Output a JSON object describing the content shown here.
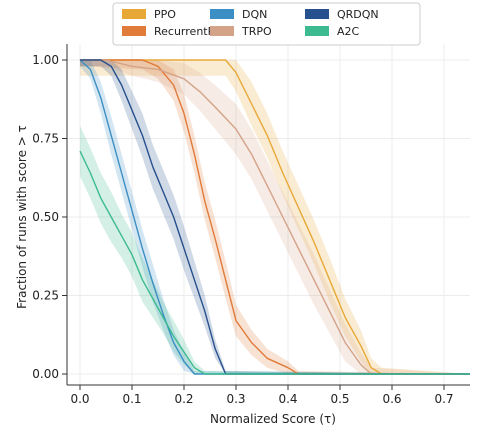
{
  "chart_data": {
    "type": "line",
    "xlabel": "Normalized Score (τ)",
    "ylabel": "Fraction of runs with score > τ",
    "xlim": [
      -0.025,
      0.75
    ],
    "ylim": [
      0.0,
      1.0
    ],
    "x_ticks": [
      "0.0",
      "0.1",
      "0.2",
      "0.3",
      "0.4",
      "0.5",
      "0.6",
      "0.7"
    ],
    "y_ticks": [
      "0.00",
      "0.25",
      "0.50",
      "0.75",
      "1.00"
    ],
    "grid": true,
    "legend_position": "top",
    "series": [
      {
        "name": "PPO",
        "color": "#e8a838",
        "x": [
          0.0,
          0.28,
          0.3,
          0.33,
          0.36,
          0.39,
          0.42,
          0.45,
          0.48,
          0.51,
          0.54,
          0.56,
          0.58
        ],
        "y": [
          1.0,
          1.0,
          0.96,
          0.86,
          0.76,
          0.64,
          0.53,
          0.42,
          0.3,
          0.18,
          0.09,
          0.02,
          0.0
        ],
        "band": [
          0.05,
          0.05,
          0.06,
          0.07,
          0.07,
          0.07,
          0.07,
          0.07,
          0.07,
          0.06,
          0.05,
          0.03,
          0.02
        ]
      },
      {
        "name": "RecurrentPPO",
        "color": "#e07b39",
        "x": [
          0.0,
          0.12,
          0.15,
          0.18,
          0.2,
          0.22,
          0.24,
          0.26,
          0.28,
          0.3,
          0.33,
          0.36,
          0.4,
          0.42
        ],
        "y": [
          1.0,
          1.0,
          0.98,
          0.92,
          0.83,
          0.7,
          0.55,
          0.43,
          0.3,
          0.17,
          0.1,
          0.05,
          0.02,
          0.0
        ],
        "band": [
          0.02,
          0.03,
          0.04,
          0.05,
          0.06,
          0.06,
          0.06,
          0.06,
          0.06,
          0.05,
          0.04,
          0.03,
          0.02,
          0.01
        ]
      },
      {
        "name": "DQN",
        "color": "#3b8fc4",
        "x": [
          0.0,
          0.02,
          0.04,
          0.06,
          0.08,
          0.1,
          0.12,
          0.14,
          0.16,
          0.18,
          0.2,
          0.22
        ],
        "y": [
          1.0,
          0.97,
          0.88,
          0.76,
          0.64,
          0.52,
          0.4,
          0.29,
          0.19,
          0.1,
          0.04,
          0.0
        ],
        "band": [
          0.02,
          0.03,
          0.05,
          0.06,
          0.06,
          0.06,
          0.06,
          0.06,
          0.05,
          0.04,
          0.03,
          0.01
        ]
      },
      {
        "name": "TRPO",
        "color": "#d4a287",
        "x": [
          0.0,
          0.05,
          0.1,
          0.15,
          0.2,
          0.23,
          0.26,
          0.3,
          0.33,
          0.36,
          0.39,
          0.42,
          0.45,
          0.48,
          0.51,
          0.54,
          0.56
        ],
        "y": [
          1.0,
          1.0,
          0.98,
          0.97,
          0.94,
          0.9,
          0.85,
          0.78,
          0.7,
          0.6,
          0.5,
          0.4,
          0.3,
          0.2,
          0.1,
          0.03,
          0.0
        ],
        "band": [
          0.02,
          0.02,
          0.03,
          0.04,
          0.05,
          0.06,
          0.07,
          0.08,
          0.08,
          0.08,
          0.08,
          0.08,
          0.08,
          0.07,
          0.06,
          0.04,
          0.02
        ]
      },
      {
        "name": "QRDQN",
        "color": "#27508e",
        "x": [
          0.0,
          0.04,
          0.06,
          0.08,
          0.1,
          0.12,
          0.14,
          0.16,
          0.18,
          0.2,
          0.22,
          0.24,
          0.26,
          0.28
        ],
        "y": [
          1.0,
          1.0,
          0.98,
          0.92,
          0.84,
          0.76,
          0.66,
          0.58,
          0.5,
          0.4,
          0.3,
          0.2,
          0.08,
          0.0
        ],
        "band": [
          0.02,
          0.02,
          0.03,
          0.05,
          0.06,
          0.07,
          0.07,
          0.07,
          0.07,
          0.07,
          0.06,
          0.05,
          0.03,
          0.01
        ]
      },
      {
        "name": "A2C",
        "color": "#3dba8f",
        "x": [
          0.0,
          0.02,
          0.04,
          0.06,
          0.08,
          0.1,
          0.12,
          0.14,
          0.16,
          0.18,
          0.2,
          0.22,
          0.24
        ],
        "y": [
          0.71,
          0.64,
          0.56,
          0.5,
          0.44,
          0.38,
          0.3,
          0.24,
          0.18,
          0.12,
          0.07,
          0.02,
          0.0
        ],
        "band": [
          0.08,
          0.08,
          0.08,
          0.08,
          0.07,
          0.07,
          0.07,
          0.06,
          0.05,
          0.05,
          0.04,
          0.02,
          0.01
        ]
      }
    ]
  }
}
